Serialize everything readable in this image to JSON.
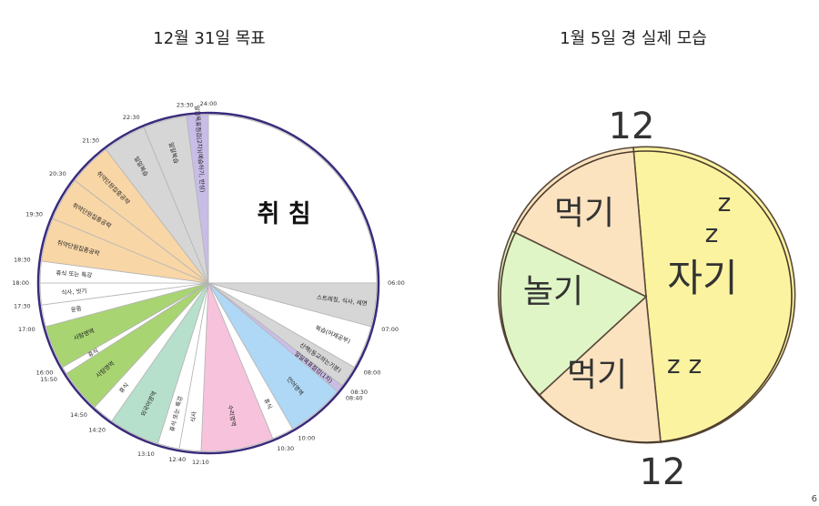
{
  "left_title": "12월 31일 목표",
  "right_title": "1월 5일 경 실제 모습",
  "page_number": "6",
  "left_chart": {
    "center_label": "취 침",
    "segments": [
      {
        "label": "스트레칭, 식사, 세면"
      },
      {
        "label": "복습(어제공부)"
      },
      {
        "label": "산책(등교하는기분)"
      },
      {
        "label": "일일목표점검(1차)"
      },
      {
        "label": "언어영역"
      },
      {
        "label": "휴식"
      },
      {
        "label": "수리영역"
      },
      {
        "label": "식사"
      },
      {
        "label": "휴식 또는 특강"
      },
      {
        "label": "외국어영역"
      },
      {
        "label": "휴식"
      },
      {
        "label": "사탐영역"
      },
      {
        "label": "휴식"
      },
      {
        "label": "사탐영역"
      },
      {
        "label": "운동"
      },
      {
        "label": "식사, 씻기"
      },
      {
        "label": "휴식 또는 특강"
      },
      {
        "label": "취약단원집중공략"
      },
      {
        "label": "취약단원집중공략"
      },
      {
        "label": "취약단원집중공략"
      },
      {
        "label": "일일복습"
      },
      {
        "label": "일일복습"
      },
      {
        "label": "일일목표점검(2차)(예습하기, 반성)"
      }
    ],
    "times": [
      "24:00",
      "06:00",
      "07:00",
      "08:00",
      "08:30",
      "08:40",
      "10:00",
      "10:30",
      "12:10",
      "12:40",
      "13:10",
      "14:20",
      "14:50",
      "15:50",
      "16:00",
      "17:00",
      "17:30",
      "18:00",
      "18:30",
      "19:30",
      "20:30",
      "21:30",
      "22:30",
      "23:30"
    ]
  },
  "right_chart": {
    "top_label": "12",
    "bottom_label": "12",
    "sleep_label": "자기",
    "zz1": "z",
    "zz2": "z",
    "zz3": "z z",
    "eat_top_label": "먹기",
    "play_label": "놀기",
    "eat_bottom_label": "먹기"
  }
}
